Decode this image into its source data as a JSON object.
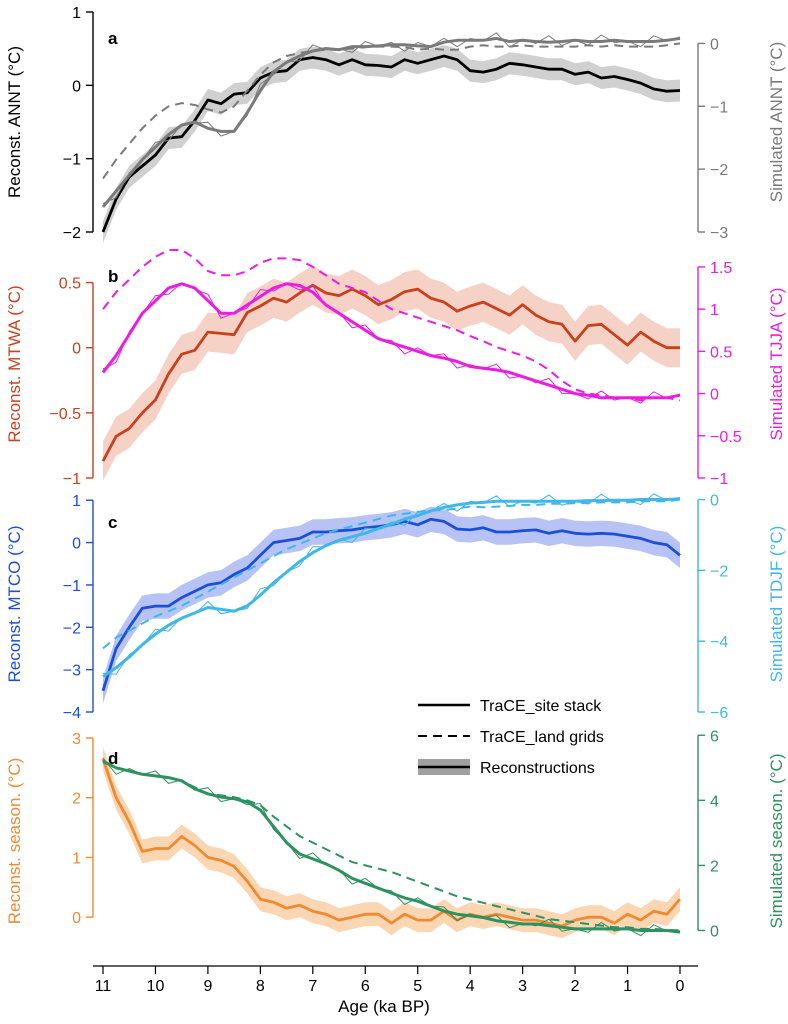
{
  "figure": {
    "xlabel": "Age (ka BP)",
    "x_ticks": [
      "11",
      "10",
      "9",
      "8",
      "7",
      "6",
      "5",
      "4",
      "3",
      "2",
      "1",
      "0"
    ],
    "xlim": [
      11,
      0
    ]
  },
  "legend": {
    "site_stack": "TraCE_site stack",
    "land_grids": "TraCE_land grids",
    "reconstructions": "Reconstructions"
  },
  "colors": {
    "a_recon": "#000000",
    "a_band": "#c8c8c8",
    "a_sim": "#7a7a7a",
    "b_recon": "#c8401c",
    "b_band": "#f5c9bb",
    "b_sim": "#e81ee0",
    "c_recon": "#1c4fd8",
    "c_band": "#a9b9f2",
    "c_sim": "#3fb7ea",
    "d_recon": "#f08a30",
    "d_band": "#f9cfa6",
    "d_sim": "#2e9160"
  },
  "chart_data": [
    {
      "type": "line",
      "panel": "a",
      "ylabel_left": "Reconst. ANNT (°C)",
      "ylabel_right": "Simulated ANNT (°C)",
      "left_ticks": [
        1,
        0,
        -1,
        -2
      ],
      "right_ticks": [
        0,
        -1,
        -2,
        -3
      ],
      "ylim_left": [
        -2,
        1
      ],
      "ylim_right": [
        -3,
        0.5
      ],
      "ages": [
        11.0,
        10.75,
        10.5,
        10.25,
        10.0,
        9.75,
        9.5,
        9.25,
        9.0,
        8.75,
        8.5,
        8.25,
        8.0,
        7.75,
        7.5,
        7.25,
        7.0,
        6.75,
        6.5,
        6.25,
        6.0,
        5.75,
        5.5,
        5.25,
        5.0,
        4.75,
        4.5,
        4.25,
        4.0,
        3.75,
        3.5,
        3.25,
        3.0,
        2.75,
        2.5,
        2.25,
        2.0,
        1.75,
        1.5,
        1.25,
        1.0,
        0.75,
        0.5,
        0.25,
        0.0
      ],
      "series": [
        {
          "name": "Reconstructions",
          "axis": "left",
          "band": 0.15,
          "values": [
            -2.0,
            -1.55,
            -1.25,
            -1.1,
            -0.95,
            -0.72,
            -0.7,
            -0.48,
            -0.2,
            -0.25,
            -0.12,
            -0.1,
            0.1,
            0.18,
            0.2,
            0.35,
            0.38,
            0.35,
            0.28,
            0.35,
            0.28,
            0.27,
            0.25,
            0.35,
            0.3,
            0.35,
            0.4,
            0.35,
            0.2,
            0.18,
            0.22,
            0.3,
            0.28,
            0.25,
            0.22,
            0.22,
            0.15,
            0.18,
            0.1,
            0.12,
            0.08,
            0.03,
            -0.05,
            -0.08,
            -0.07
          ]
        },
        {
          "name": "TraCE_land grids",
          "axis": "right",
          "style": "dashed",
          "values": [
            -2.15,
            -1.85,
            -1.6,
            -1.35,
            -1.15,
            -1.0,
            -0.95,
            -0.98,
            -1.05,
            -1.1,
            -1.0,
            -0.75,
            -0.5,
            -0.3,
            -0.2,
            -0.15,
            -0.12,
            -0.1,
            -0.1,
            -0.08,
            -0.06,
            -0.05,
            -0.05,
            -0.06,
            -0.1,
            -0.08,
            -0.1,
            -0.1,
            -0.05,
            -0.03,
            -0.05,
            -0.05,
            -0.03,
            -0.05,
            -0.05,
            -0.05,
            -0.05,
            -0.03,
            -0.05,
            -0.03,
            -0.05,
            -0.05,
            -0.05,
            -0.03,
            0.0
          ]
        },
        {
          "name": "TraCE_site stack",
          "axis": "right",
          "values": [
            -2.6,
            -2.35,
            -2.1,
            -1.85,
            -1.65,
            -1.45,
            -1.3,
            -1.25,
            -1.35,
            -1.4,
            -1.4,
            -1.1,
            -0.75,
            -0.45,
            -0.3,
            -0.2,
            -0.12,
            -0.08,
            -0.1,
            -0.05,
            -0.05,
            -0.04,
            -0.02,
            -0.02,
            -0.04,
            -0.05,
            0.02,
            0.05,
            0.05,
            0.05,
            0.08,
            0.03,
            0.05,
            0.03,
            0.02,
            0.03,
            0.05,
            0.03,
            0.03,
            0.05,
            0.03,
            0.03,
            0.03,
            0.05,
            0.08
          ]
        }
      ]
    },
    {
      "type": "line",
      "panel": "b",
      "ylabel_left": "Reconst. MTWA (°C)",
      "ylabel_right": "Simulated TJJA (°C)",
      "left_ticks": [
        0.5,
        0,
        -0.5,
        -1
      ],
      "right_ticks": [
        1.5,
        1,
        0.5,
        0,
        -0.5,
        -1
      ],
      "ylim_left": [
        -1,
        0.75
      ],
      "ylim_right": [
        -1,
        1.7
      ],
      "ages": [
        11.0,
        10.75,
        10.5,
        10.25,
        10.0,
        9.75,
        9.5,
        9.25,
        9.0,
        8.75,
        8.5,
        8.25,
        8.0,
        7.75,
        7.5,
        7.25,
        7.0,
        6.75,
        6.5,
        6.25,
        6.0,
        5.75,
        5.5,
        5.25,
        5.0,
        4.75,
        4.5,
        4.25,
        4.0,
        3.75,
        3.5,
        3.25,
        3.0,
        2.75,
        2.5,
        2.25,
        2.0,
        1.75,
        1.5,
        1.25,
        1.0,
        0.75,
        0.5,
        0.25,
        0.0
      ],
      "series": [
        {
          "name": "Reconstructions",
          "axis": "left",
          "band": 0.15,
          "values": [
            -0.87,
            -0.68,
            -0.62,
            -0.5,
            -0.4,
            -0.2,
            -0.05,
            -0.02,
            0.12,
            0.11,
            0.1,
            0.27,
            0.32,
            0.38,
            0.35,
            0.42,
            0.48,
            0.42,
            0.4,
            0.45,
            0.4,
            0.33,
            0.37,
            0.43,
            0.45,
            0.38,
            0.35,
            0.28,
            0.32,
            0.35,
            0.3,
            0.25,
            0.33,
            0.25,
            0.2,
            0.18,
            0.05,
            0.17,
            0.18,
            0.1,
            0.02,
            0.12,
            0.05,
            0.0,
            0.0
          ]
        },
        {
          "name": "TraCE_land grids",
          "axis": "right",
          "style": "dashed",
          "values": [
            1.0,
            1.2,
            1.35,
            1.5,
            1.62,
            1.7,
            1.7,
            1.6,
            1.45,
            1.4,
            1.4,
            1.45,
            1.55,
            1.6,
            1.6,
            1.58,
            1.5,
            1.4,
            1.3,
            1.25,
            1.2,
            1.1,
            1.0,
            0.95,
            0.9,
            0.85,
            0.8,
            0.75,
            0.68,
            0.62,
            0.55,
            0.5,
            0.45,
            0.38,
            0.28,
            0.15,
            0.05,
            0.0,
            -0.02,
            -0.05,
            -0.05,
            -0.08,
            -0.05,
            -0.05,
            -0.08
          ]
        },
        {
          "name": "TraCE_site stack",
          "axis": "right",
          "values": [
            0.25,
            0.45,
            0.7,
            0.95,
            1.1,
            1.25,
            1.3,
            1.25,
            1.1,
            0.95,
            0.95,
            1.05,
            1.15,
            1.25,
            1.3,
            1.28,
            1.2,
            1.05,
            0.95,
            0.85,
            0.75,
            0.65,
            0.6,
            0.55,
            0.5,
            0.45,
            0.42,
            0.38,
            0.32,
            0.3,
            0.28,
            0.25,
            0.2,
            0.15,
            0.1,
            0.05,
            0.0,
            -0.02,
            -0.05,
            -0.05,
            -0.05,
            -0.05,
            -0.05,
            -0.05,
            -0.02
          ]
        }
      ]
    },
    {
      "type": "line",
      "panel": "c",
      "ylabel_left": "Reconst. MTCO (°C)",
      "ylabel_right": "Simulated TDJF (°C)",
      "left_ticks": [
        1,
        0,
        -1,
        -2,
        -3,
        -4
      ],
      "right_ticks": [
        0,
        -2,
        -4,
        -6
      ],
      "ylim_left": [
        -4,
        1.1
      ],
      "ylim_right": [
        -6,
        0.1
      ],
      "ages": [
        11.0,
        10.75,
        10.5,
        10.25,
        10.0,
        9.75,
        9.5,
        9.25,
        9.0,
        8.75,
        8.5,
        8.25,
        8.0,
        7.75,
        7.5,
        7.25,
        7.0,
        6.75,
        6.5,
        6.25,
        6.0,
        5.75,
        5.5,
        5.25,
        5.0,
        4.75,
        4.5,
        4.25,
        4.0,
        3.75,
        3.5,
        3.25,
        3.0,
        2.75,
        2.5,
        2.25,
        2.0,
        1.75,
        1.5,
        1.25,
        1.0,
        0.75,
        0.5,
        0.25,
        0.0
      ],
      "series": [
        {
          "name": "Reconstructions",
          "axis": "left",
          "band": 0.3,
          "values": [
            -3.5,
            -2.5,
            -2.0,
            -1.55,
            -1.5,
            -1.5,
            -1.3,
            -1.15,
            -1.0,
            -0.95,
            -0.75,
            -0.6,
            -0.3,
            0.0,
            0.05,
            0.1,
            0.25,
            0.25,
            0.28,
            0.3,
            0.35,
            0.38,
            0.42,
            0.5,
            0.42,
            0.55,
            0.5,
            0.32,
            0.3,
            0.35,
            0.25,
            0.25,
            0.28,
            0.3,
            0.22,
            0.28,
            0.22,
            0.2,
            0.22,
            0.2,
            0.15,
            0.1,
            0.0,
            -0.05,
            -0.3
          ]
        },
        {
          "name": "TraCE_land grids",
          "axis": "right",
          "style": "dashed",
          "values": [
            -4.2,
            -3.9,
            -3.7,
            -3.5,
            -3.3,
            -3.15,
            -3.0,
            -2.8,
            -2.6,
            -2.4,
            -2.2,
            -2.0,
            -1.8,
            -1.6,
            -1.4,
            -1.25,
            -1.1,
            -0.95,
            -0.85,
            -0.75,
            -0.65,
            -0.55,
            -0.45,
            -0.4,
            -0.35,
            -0.3,
            -0.3,
            -0.25,
            -0.2,
            -0.22,
            -0.2,
            -0.18,
            -0.15,
            -0.15,
            -0.12,
            -0.12,
            -0.1,
            -0.1,
            -0.08,
            -0.08,
            -0.08,
            -0.05,
            -0.05,
            -0.05,
            0.0
          ]
        },
        {
          "name": "TraCE_site stack",
          "axis": "right",
          "values": [
            -5.0,
            -4.75,
            -4.45,
            -4.1,
            -3.8,
            -3.55,
            -3.35,
            -3.2,
            -3.05,
            -3.1,
            -3.15,
            -3.0,
            -2.7,
            -2.35,
            -2.05,
            -1.75,
            -1.5,
            -1.3,
            -1.15,
            -1.05,
            -0.95,
            -0.82,
            -0.7,
            -0.55,
            -0.45,
            -0.32,
            -0.22,
            -0.15,
            -0.1,
            -0.08,
            -0.05,
            -0.05,
            -0.05,
            -0.05,
            -0.05,
            -0.05,
            -0.05,
            -0.03,
            -0.03,
            -0.02,
            -0.02,
            0.0,
            0.0,
            0.0,
            0.02
          ]
        }
      ]
    },
    {
      "type": "line",
      "panel": "d",
      "ylabel_left": "Reconst. season. (°C)",
      "ylabel_right": "Simulated season. (°C)",
      "left_ticks": [
        3,
        2,
        1,
        0
      ],
      "right_ticks": [
        6,
        4,
        2,
        0
      ],
      "ylim_left": [
        -0.55,
        3.1
      ],
      "ylim_right": [
        -0.6,
        6.1
      ],
      "ages": [
        11.0,
        10.75,
        10.5,
        10.25,
        10.0,
        9.75,
        9.5,
        9.25,
        9.0,
        8.75,
        8.5,
        8.25,
        8.0,
        7.75,
        7.5,
        7.25,
        7.0,
        6.75,
        6.5,
        6.25,
        6.0,
        5.75,
        5.5,
        5.25,
        5.0,
        4.75,
        4.5,
        4.25,
        4.0,
        3.75,
        3.5,
        3.25,
        3.0,
        2.75,
        2.5,
        2.25,
        2.0,
        1.75,
        1.5,
        1.25,
        1.0,
        0.75,
        0.5,
        0.25,
        0.0
      ],
      "series": [
        {
          "name": "Reconstructions",
          "axis": "left",
          "band": 0.2,
          "values": [
            2.65,
            2.0,
            1.6,
            1.1,
            1.15,
            1.15,
            1.35,
            1.2,
            1.0,
            0.95,
            0.85,
            0.6,
            0.3,
            0.25,
            0.15,
            0.2,
            0.1,
            0.05,
            -0.05,
            0.0,
            0.05,
            0.05,
            -0.1,
            0.05,
            -0.05,
            -0.05,
            0.1,
            -0.05,
            0.05,
            0.0,
            0.05,
            0.0,
            -0.05,
            -0.05,
            -0.1,
            -0.15,
            -0.05,
            0.0,
            0.0,
            -0.1,
            0.05,
            -0.05,
            0.1,
            0.05,
            0.3
          ]
        },
        {
          "name": "TraCE_land grids",
          "axis": "right",
          "style": "dashed",
          "values": [
            5.2,
            5.0,
            4.9,
            4.8,
            4.75,
            4.7,
            4.6,
            4.4,
            4.2,
            4.15,
            4.1,
            4.0,
            3.85,
            3.5,
            3.2,
            2.9,
            2.7,
            2.5,
            2.3,
            2.1,
            2.0,
            1.9,
            1.8,
            1.65,
            1.5,
            1.35,
            1.2,
            1.05,
            0.95,
            0.85,
            0.75,
            0.65,
            0.55,
            0.45,
            0.35,
            0.3,
            0.25,
            0.2,
            0.15,
            0.1,
            0.1,
            0.05,
            0.05,
            0.02,
            0.0
          ]
        },
        {
          "name": "TraCE_site stack",
          "axis": "right",
          "values": [
            5.2,
            5.0,
            4.9,
            4.8,
            4.75,
            4.7,
            4.6,
            4.35,
            4.2,
            4.1,
            4.05,
            3.95,
            3.7,
            3.2,
            2.7,
            2.35,
            2.2,
            2.05,
            1.85,
            1.6,
            1.45,
            1.3,
            1.15,
            1.0,
            0.9,
            0.75,
            0.6,
            0.5,
            0.45,
            0.4,
            0.3,
            0.25,
            0.2,
            0.2,
            0.15,
            0.1,
            0.05,
            0.05,
            0.05,
            0.05,
            0.05,
            0.0,
            0.0,
            0.0,
            -0.05
          ]
        }
      ]
    }
  ]
}
